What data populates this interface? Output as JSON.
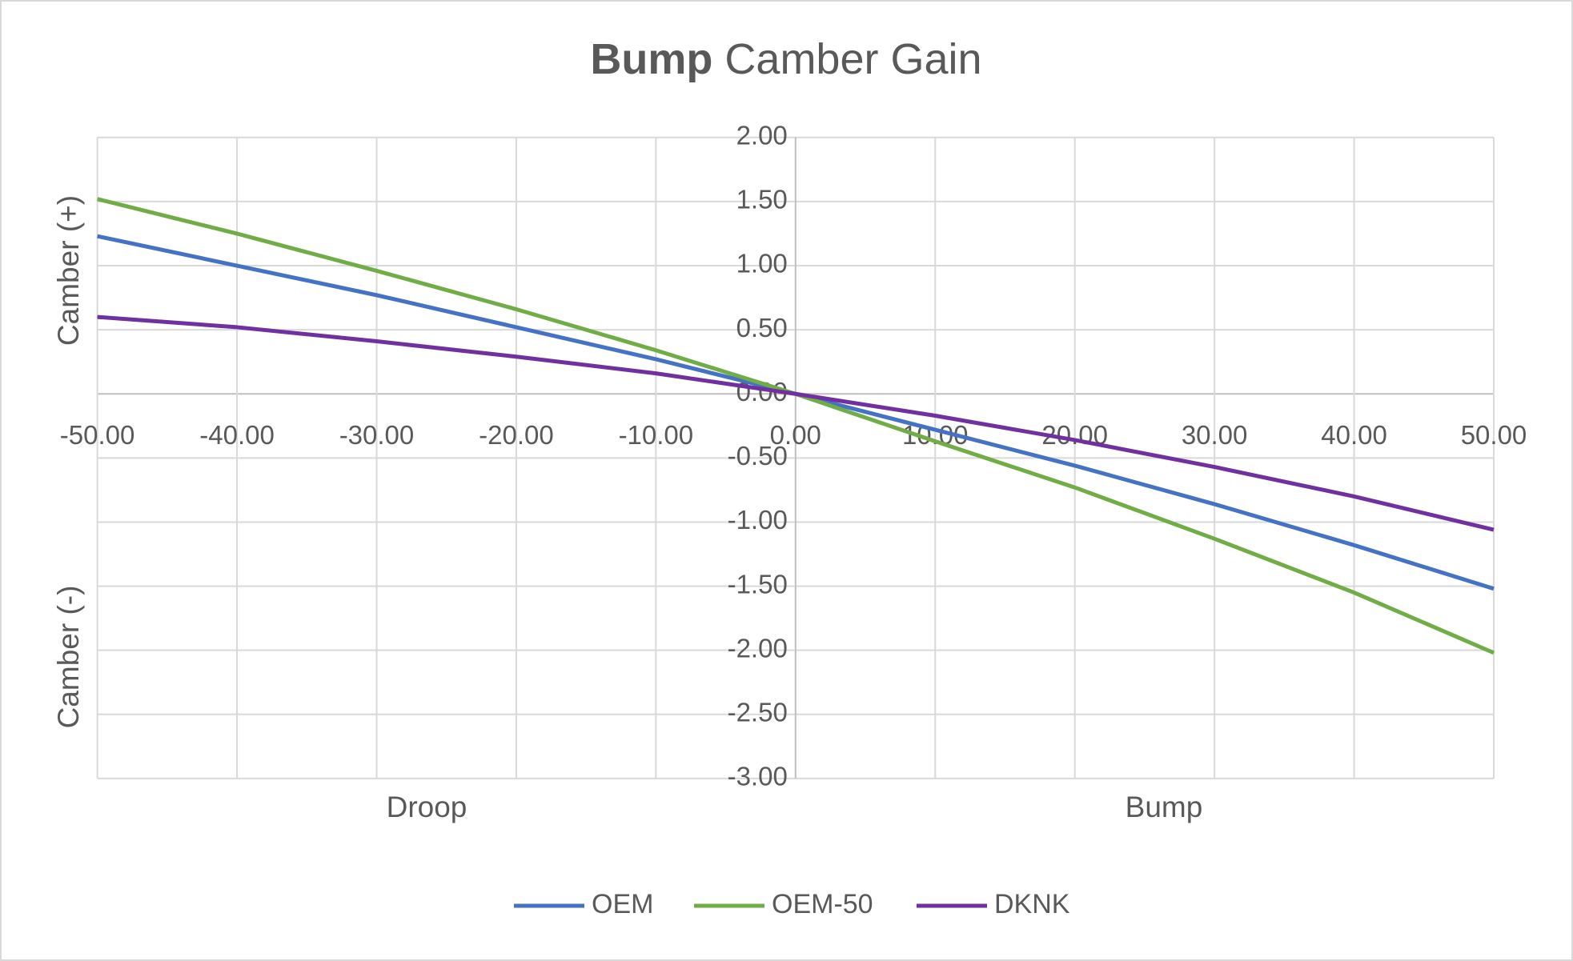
{
  "chart_data": {
    "type": "line",
    "title_emphasis": "Bump",
    "title": "Camber Gain",
    "y_label_positive": "Camber (+)",
    "y_label_negative": "Camber (-)",
    "x_annotation_left": "Droop",
    "x_annotation_right": "Bump",
    "x": [
      -50,
      -40,
      -30,
      -20,
      -10,
      0,
      10,
      20,
      30,
      40,
      50
    ],
    "series": [
      {
        "name": "OEM",
        "color": "#4472c4",
        "values": [
          1.23,
          1.0,
          0.77,
          0.52,
          0.27,
          0,
          -0.28,
          -0.56,
          -0.86,
          -1.18,
          -1.52
        ]
      },
      {
        "name": "OEM-50",
        "color": "#70ad47",
        "values": [
          1.52,
          1.25,
          0.96,
          0.66,
          0.34,
          0,
          -0.37,
          -0.73,
          -1.13,
          -1.55,
          -2.02
        ]
      },
      {
        "name": "DKNK",
        "color": "#7030a0",
        "values": [
          0.6,
          0.52,
          0.41,
          0.29,
          0.16,
          0,
          -0.17,
          -0.36,
          -0.57,
          -0.8,
          -1.06
        ]
      }
    ],
    "xlim": [
      -50,
      50
    ],
    "xticks": [
      {
        "value": -50,
        "label": "-50.00"
      },
      {
        "value": -40,
        "label": "-40.00"
      },
      {
        "value": -30,
        "label": "-30.00"
      },
      {
        "value": -20,
        "label": "-20.00"
      },
      {
        "value": -10,
        "label": "-10.00"
      },
      {
        "value": 0,
        "label": "0.00"
      },
      {
        "value": 10,
        "label": "10.00"
      },
      {
        "value": 20,
        "label": "20.00"
      },
      {
        "value": 30,
        "label": "30.00"
      },
      {
        "value": 40,
        "label": "40.00"
      },
      {
        "value": 50,
        "label": "50.00"
      }
    ],
    "ylim": [
      -3,
      2
    ],
    "yticks": [
      {
        "value": 2,
        "label": "2.00"
      },
      {
        "value": 1.5,
        "label": "1.50"
      },
      {
        "value": 1,
        "label": "1.00"
      },
      {
        "value": 0.5,
        "label": "0.50"
      },
      {
        "value": 0,
        "label": "0.00"
      },
      {
        "value": -0.5,
        "label": "-0.50"
      },
      {
        "value": -1,
        "label": "-1.00"
      },
      {
        "value": -1.5,
        "label": "-1.50"
      },
      {
        "value": -2,
        "label": "-2.00"
      },
      {
        "value": -2.5,
        "label": "-2.50"
      },
      {
        "value": -3,
        "label": "-3.00"
      }
    ],
    "grid": true,
    "legend": "bottom"
  }
}
